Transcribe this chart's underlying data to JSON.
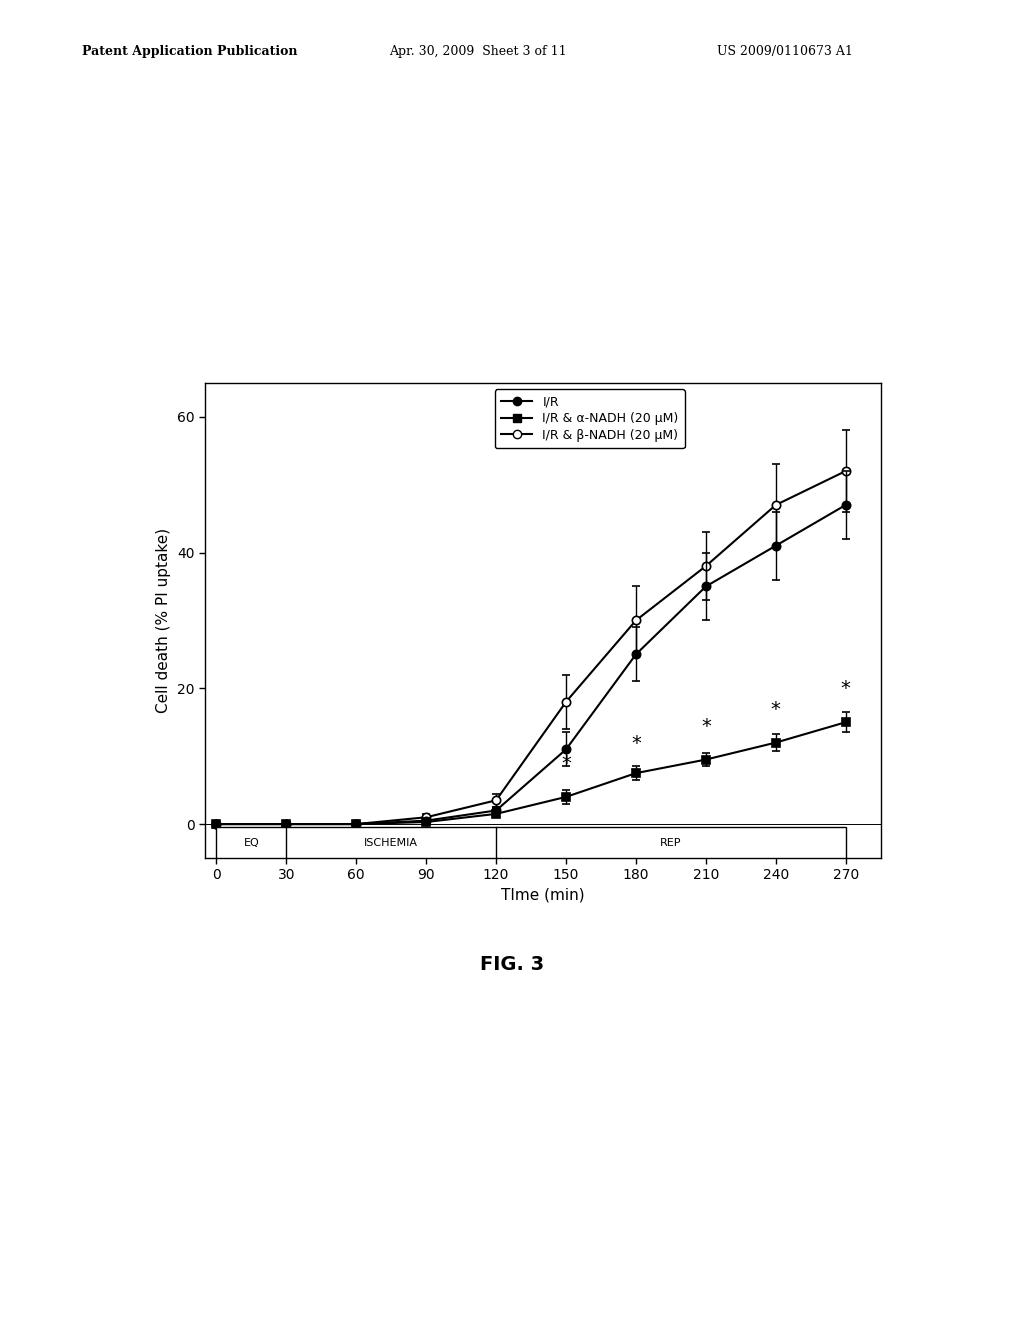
{
  "time": [
    0,
    30,
    60,
    90,
    120,
    150,
    180,
    210,
    240,
    270
  ],
  "IR": [
    0,
    0,
    0,
    0.5,
    2.0,
    11,
    25,
    35,
    41,
    47
  ],
  "IR_err": [
    0,
    0,
    0,
    0.3,
    0.5,
    2.5,
    4,
    5,
    5,
    5
  ],
  "alpha_NADH": [
    0,
    0,
    0,
    0.3,
    1.5,
    4.0,
    7.5,
    9.5,
    12,
    15
  ],
  "alpha_err": [
    0,
    0,
    0,
    0.2,
    0.4,
    1.0,
    1.0,
    1.0,
    1.2,
    1.5
  ],
  "beta_NADH": [
    0,
    0,
    0,
    1.0,
    3.5,
    18,
    30,
    38,
    47,
    52
  ],
  "beta_err": [
    0,
    0,
    0,
    0.5,
    1.0,
    4,
    5,
    5,
    6,
    6
  ],
  "ylabel": "Cell death (% PI uptake)",
  "xlabel": "TIme (min)",
  "ylim": [
    -5,
    65
  ],
  "xlim": [
    -5,
    285
  ],
  "yticks": [
    0,
    20,
    40,
    60
  ],
  "xticks": [
    0,
    30,
    60,
    90,
    120,
    150,
    180,
    210,
    240,
    270
  ],
  "xtick_labels": [
    "0",
    "30",
    "60",
    "90",
    "120",
    "150",
    "180",
    "210",
    "240",
    "270"
  ],
  "legend_IR": "I/R",
  "legend_alpha": "I/R & α-NADH (20 μM)",
  "legend_beta": "I/R & β-NADH (20 μM)",
  "star_times": [
    150,
    180,
    210,
    240,
    270
  ],
  "star_y": [
    7.5,
    10.5,
    13.0,
    15.5,
    18.5
  ],
  "eq_label": "EQ",
  "ischemia_label": "ISCHEMIA",
  "rep_label": "REP",
  "background_color": "#ffffff",
  "header_left": "Patent Application Publication",
  "header_mid": "Apr. 30, 2009  Sheet 3 of 11",
  "header_right": "US 2009/0110673 A1",
  "fig_caption": "FIG. 3"
}
